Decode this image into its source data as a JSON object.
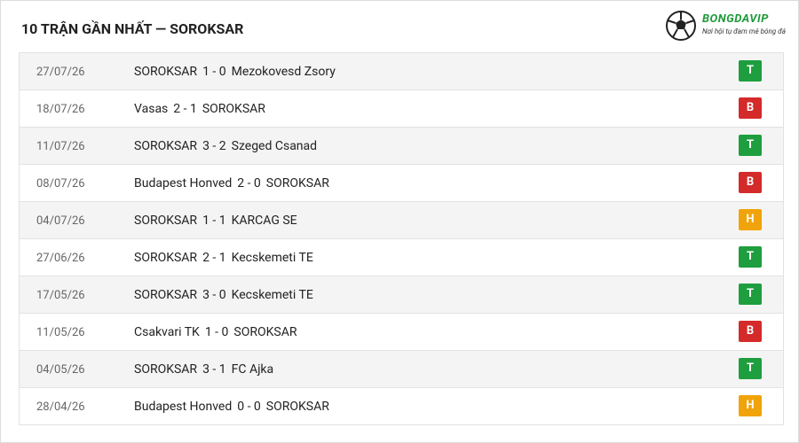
{
  "header": {
    "title": "10 TRẬN GẦN NHẤT — SOROKSAR",
    "logo": {
      "brand": "BONGDAVIP",
      "tagline": "Nơi hội tụ đam mê bóng đá"
    }
  },
  "table": {
    "rows": [
      {
        "date": "27/07/26",
        "home": "SOROKSAR",
        "score": "1 - 0",
        "away": "Mezokovesd Zsory",
        "result": "T"
      },
      {
        "date": "18/07/26",
        "home": "Vasas",
        "score": "2 - 1",
        "away": "SOROKSAR",
        "result": "B"
      },
      {
        "date": "11/07/26",
        "home": "SOROKSAR",
        "score": "3 - 2",
        "away": "Szeged Csanad",
        "result": "T"
      },
      {
        "date": "08/07/26",
        "home": "Budapest Honved",
        "score": "2 - 0",
        "away": "SOROKSAR",
        "result": "B"
      },
      {
        "date": "04/07/26",
        "home": "SOROKSAR",
        "score": "1 - 1",
        "away": "KARCAG SE",
        "result": "H"
      },
      {
        "date": "27/06/26",
        "home": "SOROKSAR",
        "score": "2 - 1",
        "away": "Kecskemeti TE",
        "result": "T"
      },
      {
        "date": "17/05/26",
        "home": "SOROKSAR",
        "score": "3 - 0",
        "away": "Kecskemeti TE",
        "result": "T"
      },
      {
        "date": "11/05/26",
        "home": "Csakvari TK",
        "score": "1 - 0",
        "away": "SOROKSAR",
        "result": "B"
      },
      {
        "date": "04/05/26",
        "home": "SOROKSAR",
        "score": "3 - 1",
        "away": "FC Ajka",
        "result": "T"
      },
      {
        "date": "28/04/26",
        "home": "Budapest Honved",
        "score": "0 - 0",
        "away": "SOROKSAR",
        "result": "H"
      }
    ]
  }
}
